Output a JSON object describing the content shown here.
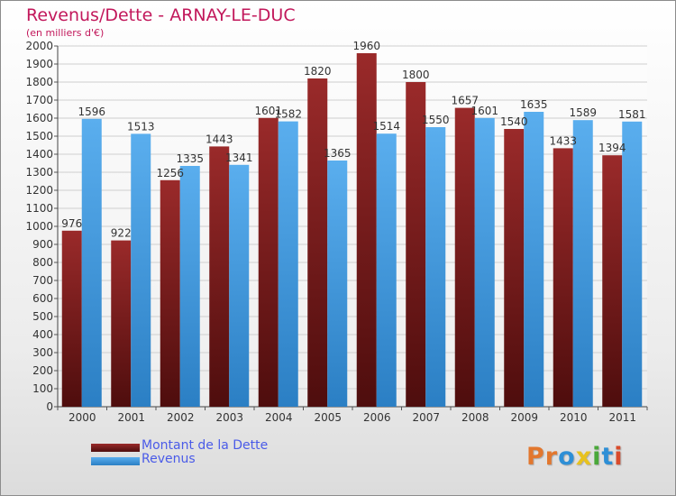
{
  "chart_data": {
    "type": "bar",
    "title": "Revenus/Dette - ARNAY-LE-DUC",
    "subtitle": "(en milliers d'€)",
    "xlabel": "",
    "ylabel": "",
    "categories": [
      "2000",
      "2001",
      "2002",
      "2003",
      "2004",
      "2005",
      "2006",
      "2007",
      "2008",
      "2009",
      "2010",
      "2011"
    ],
    "series": [
      {
        "name": "Montant de la Dette",
        "color": "#7a1a1a",
        "values": [
          976,
          922,
          1256,
          1443,
          1601,
          1820,
          1960,
          1800,
          1657,
          1540,
          1433,
          1394
        ],
        "labels": [
          "976",
          "922",
          "1256",
          "1443",
          "1601",
          "1820",
          "1960",
          "1800",
          "1657",
          "1540",
          "1433",
          "1394"
        ]
      },
      {
        "name": "Revenus",
        "color": "#3b9ae3",
        "values": [
          1596,
          1513,
          1335,
          1341,
          1582,
          1365,
          1514,
          1550,
          1601,
          1635,
          1589,
          1581
        ],
        "labels": [
          "1596",
          "1513",
          "1335",
          "1341",
          "1582",
          "1365",
          "1514",
          "1550",
          "1601",
          "1635",
          "1589",
          "1581"
        ]
      }
    ],
    "ylim": [
      0,
      2000
    ],
    "yticks": [
      0,
      100,
      200,
      300,
      400,
      500,
      600,
      700,
      800,
      900,
      1000,
      1100,
      1200,
      1300,
      1400,
      1500,
      1600,
      1700,
      1800,
      1900,
      2000
    ],
    "grid": true,
    "legend": "bottom-left"
  },
  "brand": {
    "logo_letters": [
      "P",
      "r",
      "o",
      "x",
      "i",
      "t",
      "i"
    ],
    "logo_colors": [
      "#e2772e",
      "#e2772e",
      "#2e8fd6",
      "#e8c21e",
      "#4aa83a",
      "#2e8fd6",
      "#d94b2b"
    ]
  }
}
